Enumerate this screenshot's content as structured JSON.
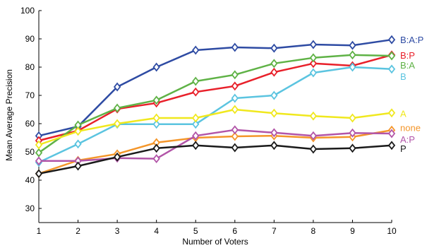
{
  "chart_data": {
    "type": "line",
    "title": "",
    "xlabel": "Number of Voters",
    "ylabel": "Mean Average Precision",
    "x": [
      1,
      2,
      3,
      4,
      5,
      6,
      7,
      8,
      9,
      10
    ],
    "xlim": [
      1,
      10
    ],
    "ylim": [
      25,
      100
    ],
    "yticks": [
      30,
      40,
      50,
      60,
      70,
      80,
      90,
      100
    ],
    "grid": false,
    "legend": "inline labels at right end of each line",
    "marker": "diamond",
    "series": [
      {
        "name": "B:A:P",
        "color": "#2e4ba3",
        "values": [
          55.7,
          59,
          73,
          80,
          86,
          87,
          86.7,
          88,
          87.7,
          89.7
        ]
      },
      {
        "name": "B:P",
        "color": "#e8202a",
        "values": [
          54,
          57.5,
          65.2,
          67.3,
          71.2,
          73.3,
          78.2,
          81.3,
          80.5,
          84.3
        ]
      },
      {
        "name": "B:A",
        "color": "#5fb246",
        "values": [
          49.7,
          59.5,
          65.5,
          68.3,
          75,
          77.3,
          81.3,
          83.3,
          84.3,
          84
        ]
      },
      {
        "name": "B",
        "color": "#5bc4e0",
        "values": [
          46.3,
          52.8,
          59.8,
          59.8,
          59.8,
          69,
          70,
          78,
          80,
          79.3
        ]
      },
      {
        "name": "A",
        "color": "#f0e81e",
        "values": [
          52.5,
          57.3,
          60,
          62,
          62,
          65,
          63.7,
          62.7,
          62,
          63.8
        ]
      },
      {
        "name": "none",
        "color": "#f4962a",
        "values": [
          42.3,
          47,
          49.3,
          53.3,
          55,
          55.5,
          55.7,
          55,
          55.3,
          57.7
        ]
      },
      {
        "name": "A:P",
        "color": "#b255a8",
        "values": [
          46.8,
          46.8,
          47.8,
          47.6,
          55.7,
          57.8,
          56.8,
          55.7,
          56.7,
          56.5
        ]
      },
      {
        "name": "P",
        "color": "#1a1a1a",
        "values": [
          42.3,
          45,
          48.2,
          51.3,
          52.3,
          51.5,
          52.3,
          51,
          51.3,
          52.3
        ]
      }
    ],
    "label_y_positions": [
      89.7,
      84.2,
      80.8,
      76.7,
      63.6,
      58.6,
      54.5,
      51.3
    ]
  }
}
